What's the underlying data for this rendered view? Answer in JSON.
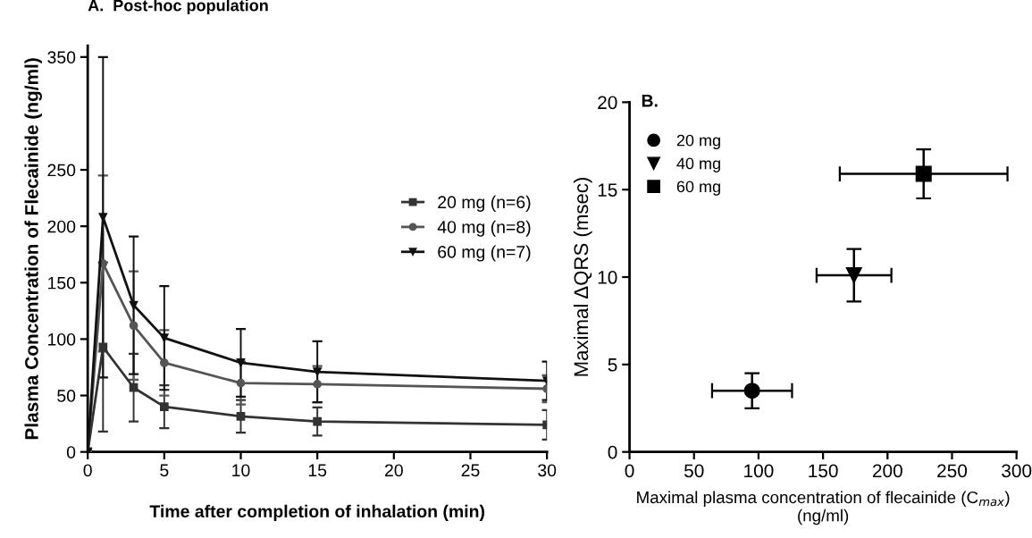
{
  "chart_data": [
    {
      "type": "line",
      "title": "A.  Post-hoc population",
      "xlabel": "Time after completion of inhalation (min)",
      "ylabel": "Plasma Concentration of Flecainide (ng/ml)",
      "x": [
        0,
        1,
        3,
        5,
        10,
        15,
        30
      ],
      "xlim": [
        0,
        30
      ],
      "xticks": [
        0,
        5,
        10,
        15,
        20,
        25,
        30
      ],
      "ylim": [
        0,
        360
      ],
      "yticks": [
        0,
        50,
        100,
        150,
        200,
        250,
        350
      ],
      "series": [
        {
          "name": "20 mg (n=6)",
          "color": "#333333",
          "marker": "square",
          "values": [
            0,
            93,
            57,
            40,
            31.5,
            27,
            24
          ],
          "errors": [
            null,
            75,
            30,
            19,
            14.5,
            12.5,
            13
          ]
        },
        {
          "name": "40 mg (n=8)",
          "color": "#555555",
          "marker": "circle",
          "values": [
            0,
            167,
            112,
            79,
            61,
            60,
            56
          ],
          "errors": [
            null,
            78,
            48,
            29,
            19,
            16,
            12
          ]
        },
        {
          "name": "60 mg (n=7)",
          "color": "#111111",
          "marker": "triangle",
          "values": [
            0,
            208,
            130,
            101,
            79,
            71,
            63
          ],
          "errors": [
            null,
            142,
            61,
            46,
            30,
            27,
            17
          ]
        }
      ],
      "legend": "right",
      "grid": false
    },
    {
      "type": "scatter",
      "title": "B.",
      "xlabel": "Maximal plasma concentration of flecainide (C$_{max}$)\n(ng/ml)",
      "ylabel": "Maximal ΔQRS (msec)",
      "xlim": [
        0,
        300
      ],
      "xticks": [
        0,
        50,
        100,
        150,
        200,
        250,
        300
      ],
      "ylim": [
        0,
        20
      ],
      "yticks": [
        0,
        5,
        10,
        15,
        20
      ],
      "series": [
        {
          "name": "20 mg",
          "color": "#000000",
          "marker": "circle",
          "x": [
            95
          ],
          "values": [
            3.5
          ],
          "errors": [
            [
              2.5,
              4.5
            ]
          ],
          "xerrors": [
            [
              64,
              126
            ]
          ]
        },
        {
          "name": "40 mg",
          "color": "#000000",
          "marker": "triangle",
          "x": [
            174
          ],
          "values": [
            10.1
          ],
          "errors": [
            [
              8.6,
              11.6
            ]
          ],
          "xerrors": [
            [
              145,
              203
            ]
          ]
        },
        {
          "name": "60 mg",
          "color": "#000000",
          "marker": "square",
          "x": [
            228
          ],
          "values": [
            15.9
          ],
          "errors": [
            [
              14.5,
              17.3
            ]
          ],
          "xerrors": [
            [
              163,
              293
            ]
          ]
        }
      ],
      "legend": "top left",
      "grid": false
    }
  ]
}
